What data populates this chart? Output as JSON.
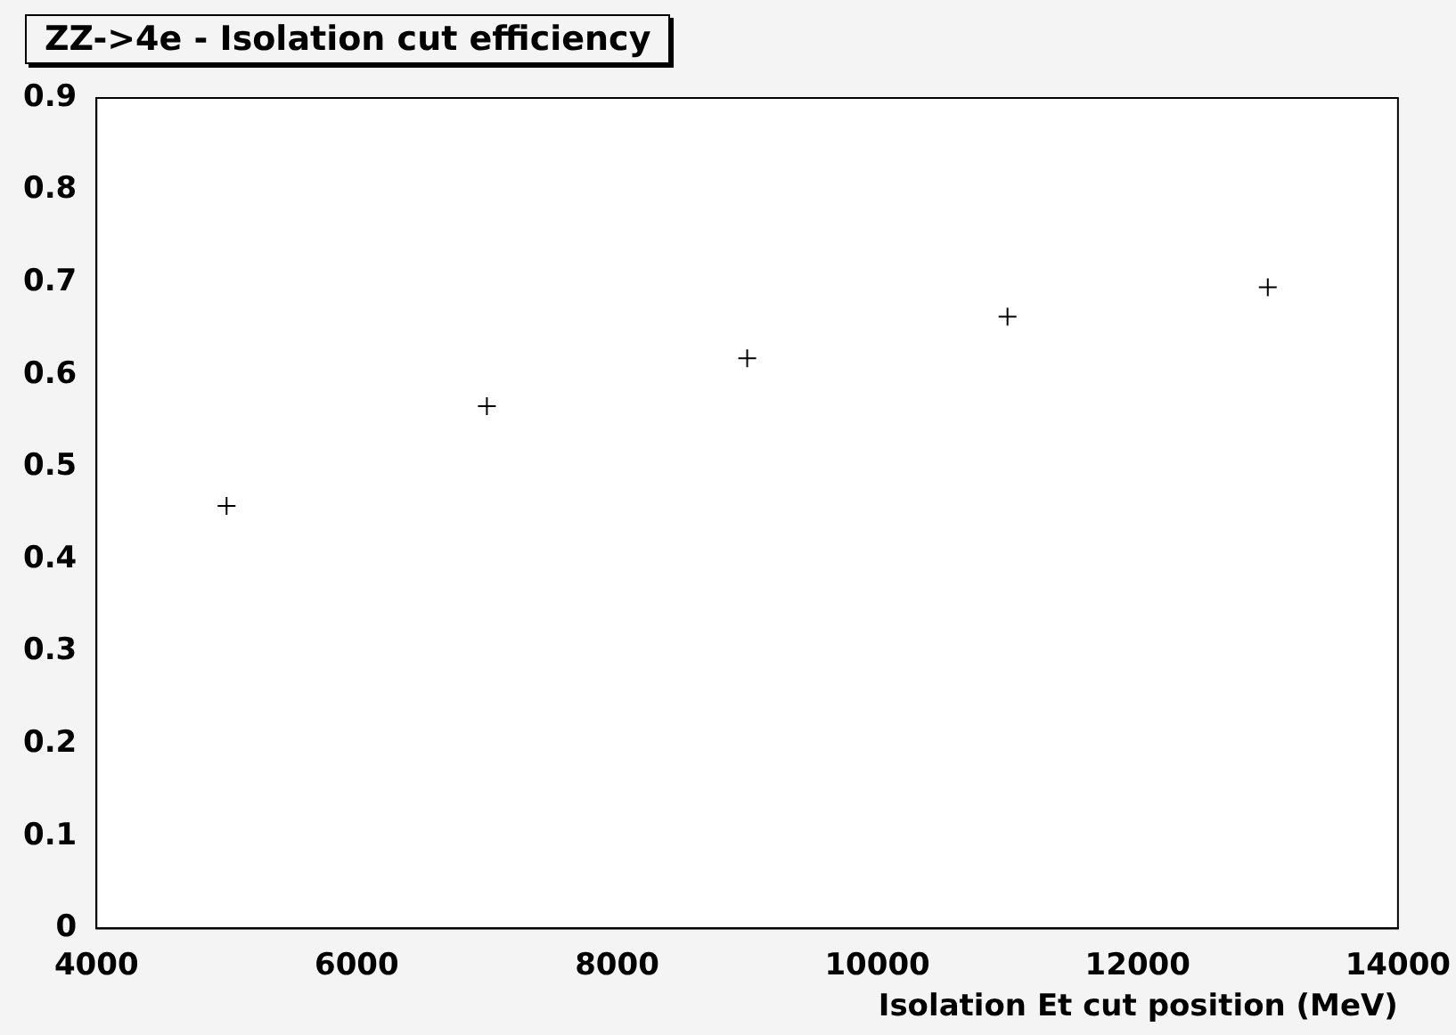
{
  "chart_data": {
    "type": "scatter",
    "title": "ZZ->4e - Isolation cut efficiency",
    "xlabel": "Isolation Et cut position (MeV)",
    "x": [
      5000,
      7000,
      9000,
      11000,
      13000
    ],
    "series": [
      {
        "color": "#000000",
        "values": [
          0.458,
          0.566,
          0.618,
          0.663,
          0.695
        ]
      }
    ],
    "marker": "cross",
    "xlim": [
      4000,
      14000
    ],
    "xticks": [
      4000,
      6000,
      8000,
      10000,
      12000,
      14000
    ],
    "ylim": [
      0,
      0.9
    ],
    "yticks": [
      0,
      0.1,
      0.2,
      0.3,
      0.4,
      0.5,
      0.6,
      0.7,
      0.8,
      0.9
    ],
    "grid": false,
    "legend": false
  }
}
